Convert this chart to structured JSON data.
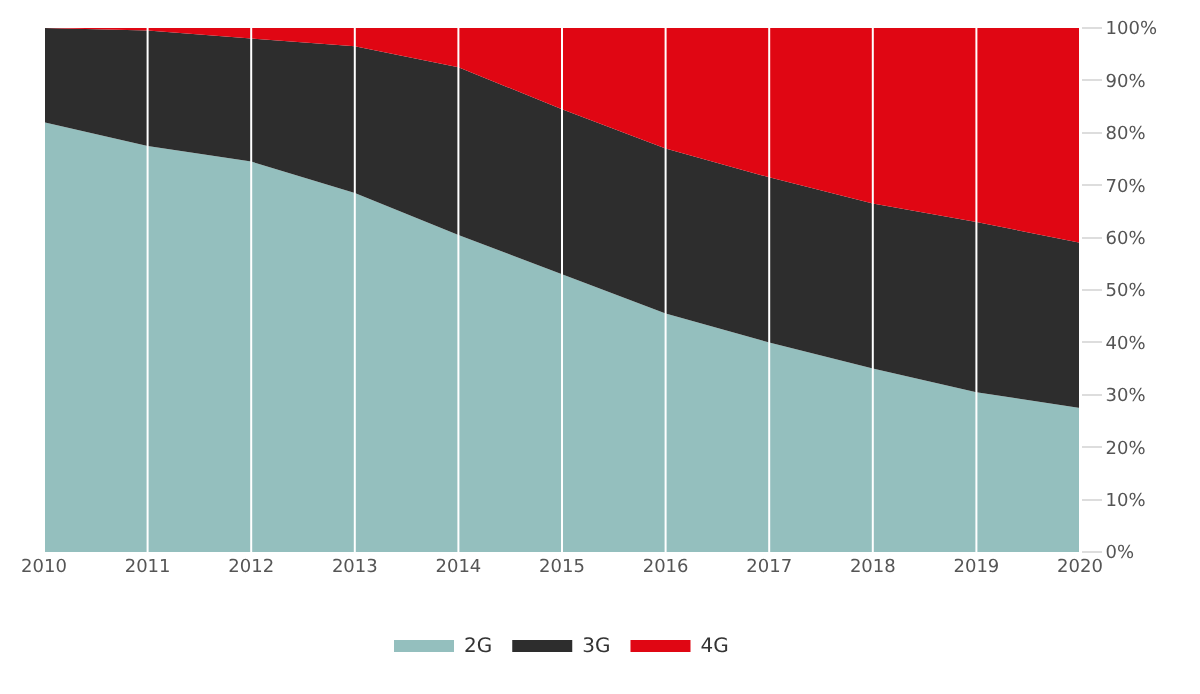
{
  "chart_data": {
    "type": "area",
    "stacked": true,
    "x": [
      2010,
      2011,
      2012,
      2013,
      2014,
      2015,
      2016,
      2017,
      2018,
      2019,
      2020
    ],
    "series": [
      {
        "name": "2G",
        "color": "#94bfbe",
        "values": [
          82,
          77.5,
          74.5,
          68.5,
          60.5,
          53,
          45.5,
          40,
          35,
          30.5,
          27.5
        ]
      },
      {
        "name": "3G",
        "color": "#2d2d2d",
        "values": [
          18,
          22,
          23.5,
          28,
          32,
          31.5,
          31.5,
          31.5,
          31.5,
          32.5,
          31.5
        ]
      },
      {
        "name": "4G",
        "color": "#e00613",
        "values": [
          0,
          0.5,
          2,
          3.5,
          7.5,
          15.5,
          23,
          28.5,
          33.5,
          37,
          41
        ]
      }
    ],
    "xlim": [
      2010,
      2020
    ],
    "xticks": [
      2010,
      2011,
      2012,
      2013,
      2014,
      2015,
      2016,
      2017,
      2018,
      2019,
      2020
    ],
    "ylim": [
      0,
      100
    ],
    "yticks": [
      {
        "value": 0,
        "label": "0%"
      },
      {
        "value": 10,
        "label": "10%"
      },
      {
        "value": 20,
        "label": "20%"
      },
      {
        "value": 30,
        "label": "30%"
      },
      {
        "value": 40,
        "label": "40%"
      },
      {
        "value": 50,
        "label": "50%"
      },
      {
        "value": 60,
        "label": "60%"
      },
      {
        "value": 70,
        "label": "70%"
      },
      {
        "value": 80,
        "label": "80%"
      },
      {
        "value": 90,
        "label": "90%"
      },
      {
        "value": 100,
        "label": "100%"
      }
    ],
    "grid": "x",
    "legend": "bottom"
  }
}
